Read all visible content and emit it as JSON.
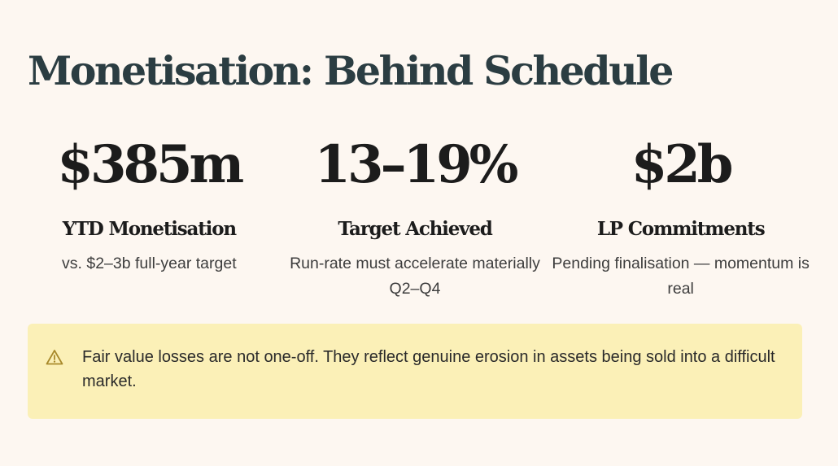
{
  "title": "Monetisation: Behind Schedule",
  "stats": [
    {
      "value": "$385m",
      "label": "YTD Monetisation",
      "description": "vs. $2–3b full-year target"
    },
    {
      "value": "13–19%",
      "label": "Target Achieved",
      "description": "Run-rate must accelerate materially Q2–Q4"
    },
    {
      "value": "$2b",
      "label": "LP Commitments",
      "description": "Pending finalisation — momentum is real"
    }
  ],
  "callout": {
    "icon": "warning-icon",
    "text": "Fair value losses are not one-off. They reflect genuine erosion in assets being sold into a difficult market."
  },
  "colors": {
    "background": "#fdf7f1",
    "title": "#2b3d42",
    "callout_background": "#fbf0b7",
    "warning_icon": "#a8892a"
  }
}
